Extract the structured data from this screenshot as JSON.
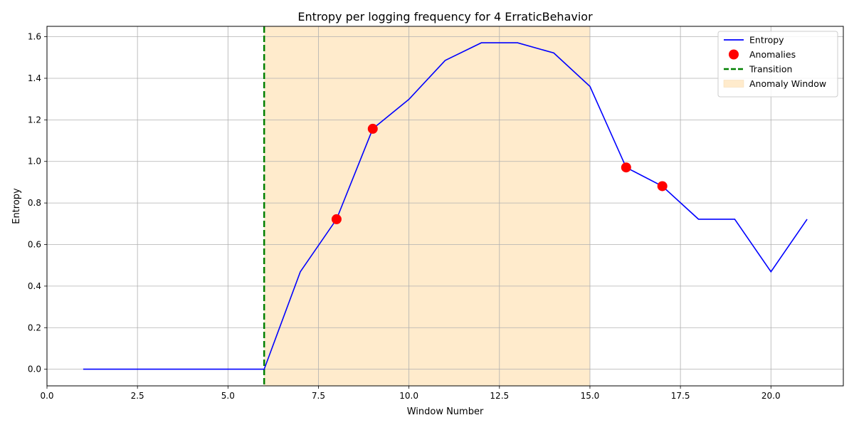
{
  "chart_data": {
    "type": "line",
    "title": "Entropy per logging frequency for 4 ErraticBehavior",
    "xlabel": "Window Number",
    "ylabel": "Entropy",
    "xlim": [
      0,
      22.0
    ],
    "ylim": [
      -0.08,
      1.65
    ],
    "xticks": [
      0.0,
      2.5,
      5.0,
      7.5,
      10.0,
      12.5,
      15.0,
      17.5,
      20.0
    ],
    "xtick_labels": [
      "0.0",
      "2.5",
      "5.0",
      "7.5",
      "10.0",
      "12.5",
      "15.0",
      "17.5",
      "20.0"
    ],
    "yticks": [
      0.0,
      0.2,
      0.4,
      0.6,
      0.8,
      1.0,
      1.2,
      1.4,
      1.6
    ],
    "ytick_labels": [
      "0.0",
      "0.2",
      "0.4",
      "0.6",
      "0.8",
      "1.0",
      "1.2",
      "1.4",
      "1.6"
    ],
    "grid": true,
    "legend_position": "top-right",
    "series": [
      {
        "name": "Entropy",
        "style": "line",
        "color": "#0000ff",
        "x": [
          1,
          2,
          3,
          4,
          5,
          6,
          7,
          8,
          9,
          10,
          11,
          12,
          13,
          14,
          15,
          16,
          17,
          18,
          19,
          20,
          21
        ],
        "y": [
          0.0,
          0.0,
          0.0,
          0.0,
          0.0,
          0.0,
          0.469,
          0.722,
          1.157,
          1.299,
          1.486,
          1.571,
          1.571,
          1.522,
          1.361,
          0.971,
          0.881,
          0.722,
          0.722,
          0.469,
          0.722
        ]
      },
      {
        "name": "Anomalies",
        "style": "scatter",
        "color": "#ff0000",
        "x": [
          8,
          9,
          16,
          17
        ],
        "y": [
          0.722,
          1.157,
          0.971,
          0.881
        ]
      },
      {
        "name": "Transition",
        "style": "vline",
        "color": "#008000",
        "x": 6
      },
      {
        "name": "Anomaly Window",
        "style": "span",
        "color": "#ffebcc",
        "x_range": [
          6,
          15
        ]
      }
    ]
  }
}
